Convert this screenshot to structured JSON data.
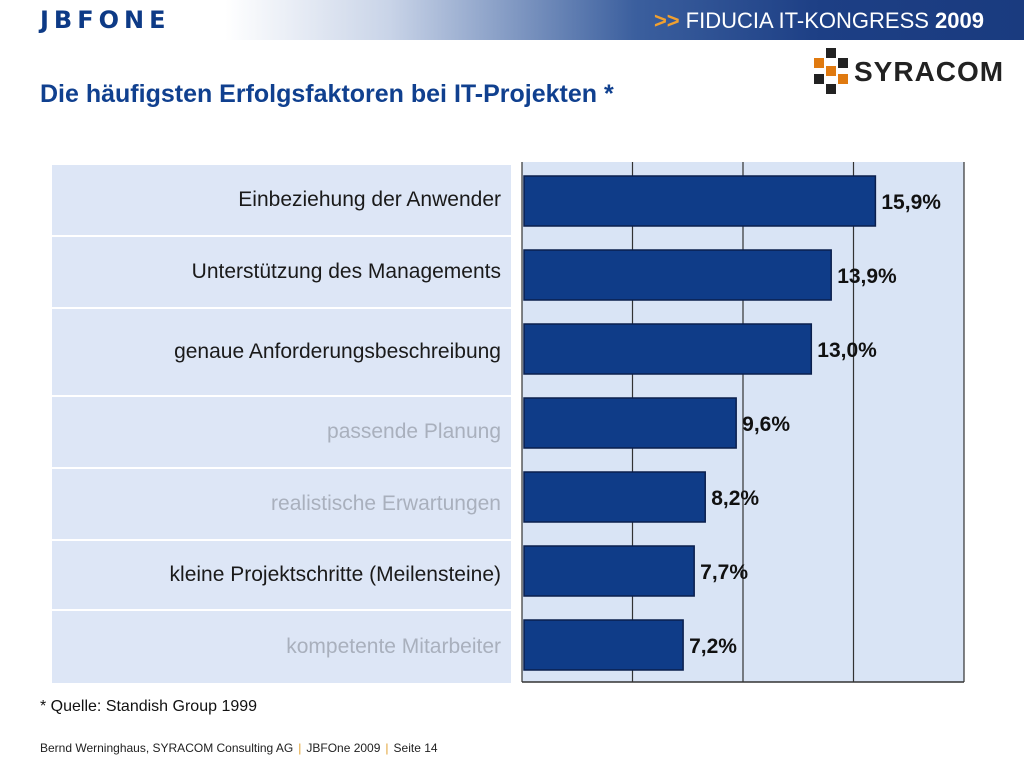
{
  "header": {
    "logo_text": "JBFONE",
    "kongress_arrows": ">>",
    "kongress_name": "FIDUCIA IT-KONGRESS",
    "kongress_year": "2009",
    "partner_logo_text": "SYRACOM",
    "colors": {
      "brand_blue": "#0d3a86",
      "accent_orange": "#f0a030"
    }
  },
  "page_title": "Die häufigsten Erfolgsfaktoren bei IT-Projekten *",
  "chart_data": {
    "type": "bar",
    "orientation": "horizontal",
    "categories": [
      "Einbeziehung der Anwender",
      "Unterstützung des Managements",
      "genaue Anforderungsbeschreibung",
      "passende Planung",
      "realistische Erwartungen",
      "kleine Projektschritte (Meilensteine)",
      "kompetente Mitarbeiter"
    ],
    "values": [
      15.9,
      13.9,
      13.0,
      9.6,
      8.2,
      7.7,
      7.2
    ],
    "value_labels": [
      "15,9%",
      "13,9%",
      "13,0%",
      "9,6%",
      "8,2%",
      "7,7%",
      "7,2%"
    ],
    "highlighted": [
      true,
      true,
      true,
      false,
      false,
      true,
      false
    ],
    "xlim": [
      0,
      20
    ],
    "grid": true,
    "bar_color": "#0f3c88",
    "plot_bg": "#d9e4f5"
  },
  "source_note": "* Quelle:  Standish Group 1999",
  "footer": {
    "author": "Bernd Werninghaus, SYRACOM Consulting AG",
    "event": "JBFOne 2009",
    "page": "Seite 14"
  }
}
